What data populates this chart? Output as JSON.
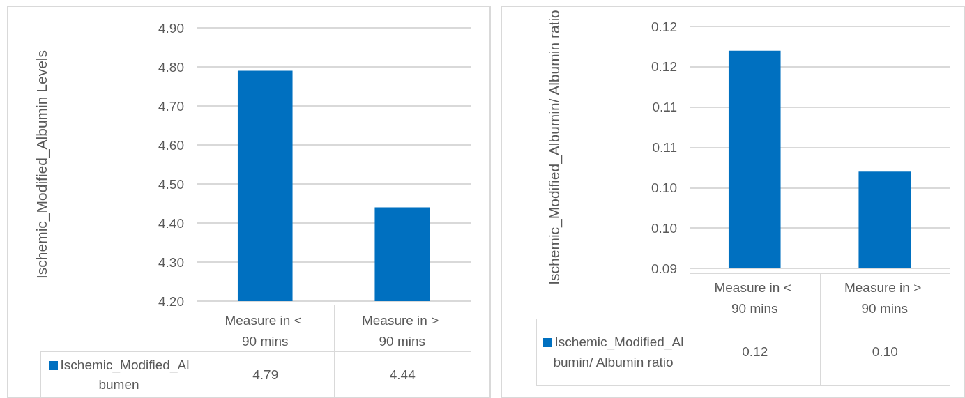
{
  "chart_data": [
    {
      "type": "bar",
      "ylabel": "Ischemic_Modified_Albumin Levels",
      "categories": [
        "Measure in < 90 mins",
        "Measure in > 90 mins"
      ],
      "series": [
        {
          "name": "Ischemic_Modified_Albumen",
          "color": "#0070c0",
          "values": [
            4.79,
            4.44
          ]
        }
      ],
      "ylim": [
        4.2,
        4.9
      ],
      "yticks": [
        {
          "value": 4.2,
          "label": "4.20"
        },
        {
          "value": 4.3,
          "label": "4.30"
        },
        {
          "value": 4.4,
          "label": "4.40"
        },
        {
          "value": 4.5,
          "label": "4.50"
        },
        {
          "value": 4.6,
          "label": "4.60"
        },
        {
          "value": 4.7,
          "label": "4.70"
        },
        {
          "value": 4.8,
          "label": "4.80"
        },
        {
          "value": 4.9,
          "label": "4.90"
        }
      ],
      "grid": "y",
      "legend": "bottom",
      "data_labels": true
    },
    {
      "type": "bar",
      "ylabel": "Ischemic_Modified_Albumin/ Albumin ratio",
      "categories": [
        "Measure in < 90 mins",
        "Measure in > 90 mins"
      ],
      "series": [
        {
          "name": "Ischemic_Modified_Albumin/ Albumin ratio",
          "color": "#0070c0",
          "values": [
            0.117,
            0.102
          ],
          "value_labels": [
            "0.12",
            "0.10"
          ]
        }
      ],
      "ylim": [
        0.09,
        0.12
      ],
      "yticks": [
        {
          "value": 0.09,
          "label": "0.09"
        },
        {
          "value": 0.095,
          "label": "0.10"
        },
        {
          "value": 0.1,
          "label": "0.10"
        },
        {
          "value": 0.105,
          "label": "0.11"
        },
        {
          "value": 0.11,
          "label": "0.11"
        },
        {
          "value": 0.115,
          "label": "0.12"
        },
        {
          "value": 0.12,
          "label": "0.12"
        }
      ],
      "grid": "y",
      "legend": "bottom"
    }
  ]
}
